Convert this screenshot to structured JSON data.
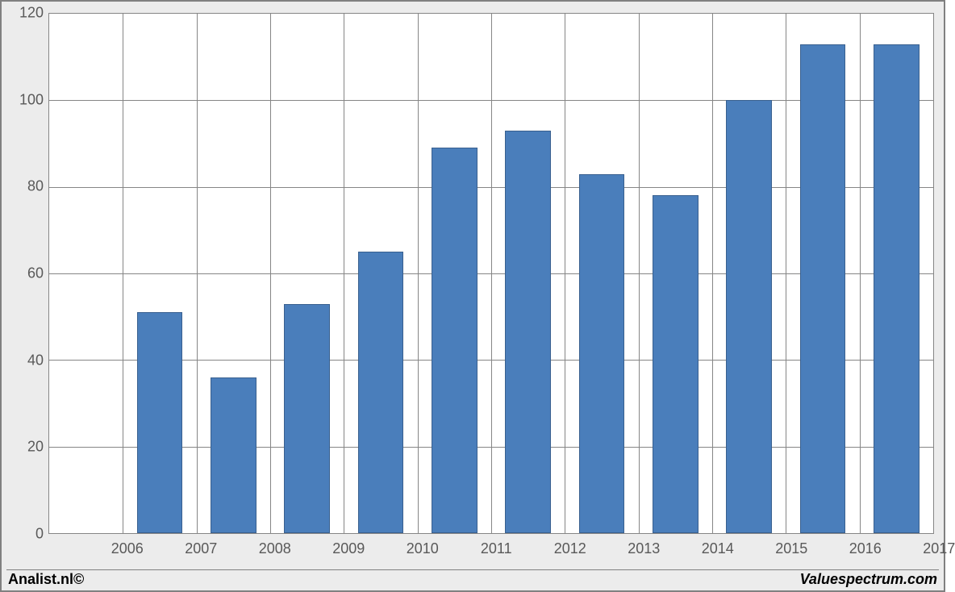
{
  "chart": {
    "type": "bar",
    "categories": [
      "2006",
      "2007",
      "2008",
      "2009",
      "2010",
      "2011",
      "2012",
      "2013",
      "2014",
      "2015",
      "2016",
      "2017"
    ],
    "values": [
      0,
      51,
      36,
      53,
      65,
      89,
      93,
      83,
      78,
      100,
      113,
      113
    ],
    "bar_color": "#4a7ebb",
    "bar_border_color": "#39608f",
    "ylim_min": 0,
    "ylim_max": 120,
    "ytick_step": 20,
    "yticks": [
      0,
      20,
      40,
      60,
      80,
      100,
      120
    ],
    "grid_color": "#868686",
    "plot_background": "#ffffff",
    "frame_background": "#ececec",
    "bar_gap_ratio": 0.38,
    "axis_font_size": 18,
    "axis_font_color": "#595959"
  },
  "footer": {
    "left": "Analist.nl©",
    "right": "Valuespectrum.com"
  }
}
